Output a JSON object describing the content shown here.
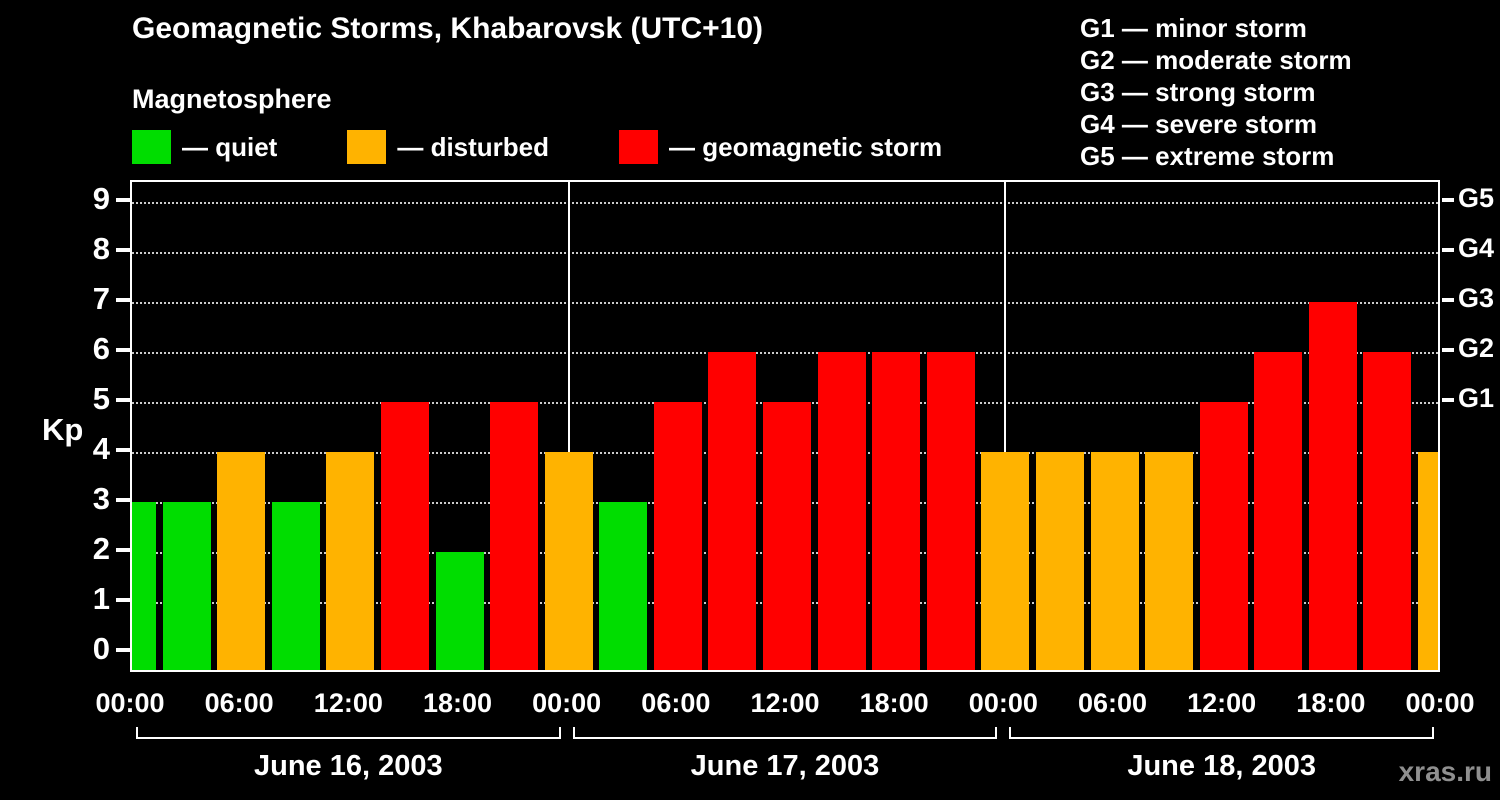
{
  "header": {
    "title": "Geomagnetic Storms, Khabarovsk (UTC+10)",
    "subtitle": "Magnetosphere"
  },
  "legend": {
    "items": [
      {
        "key": "quiet",
        "label": "— quiet",
        "color": "#00dd00"
      },
      {
        "key": "disturbed",
        "label": "— disturbed",
        "color": "#ffb300"
      },
      {
        "key": "storm",
        "label": "— geomagnetic storm",
        "color": "#ff0000"
      }
    ]
  },
  "storm_scale_legend": {
    "items": [
      "G1 — minor storm",
      "G2 — moderate storm",
      "G3 — strong storm",
      "G4 — severe storm",
      "G5 — extreme storm"
    ]
  },
  "watermark": "xras.ru",
  "chart_data": {
    "type": "bar",
    "title": "Geomagnetic Storms, Khabarovsk (UTC+10)",
    "ylabel": "Kp",
    "ylim": [
      0,
      9
    ],
    "yticks": [
      0,
      1,
      2,
      3,
      4,
      5,
      6,
      7,
      8,
      9
    ],
    "right_axis": [
      {
        "label": "G1",
        "kp": 5
      },
      {
        "label": "G2",
        "kp": 6
      },
      {
        "label": "G3",
        "kp": 7
      },
      {
        "label": "G4",
        "kp": 8
      },
      {
        "label": "G5",
        "kp": 9
      }
    ],
    "interval_hours": 3,
    "x_time_labels": [
      "00:00",
      "06:00",
      "12:00",
      "18:00",
      "00:00",
      "06:00",
      "12:00",
      "18:00",
      "00:00",
      "06:00",
      "12:00",
      "18:00",
      "00:00"
    ],
    "days": [
      {
        "label": "June 16, 2003",
        "values": [
          3,
          3,
          4,
          3,
          4,
          5,
          2,
          5
        ]
      },
      {
        "label": "June 17, 2003",
        "values": [
          4,
          3,
          5,
          6,
          5,
          6,
          6,
          6
        ]
      },
      {
        "label": "June 18, 2003",
        "values": [
          4,
          4,
          4,
          4,
          5,
          6,
          7,
          6
        ]
      }
    ],
    "trailing_value": 4,
    "color_rules": {
      "quiet_max": 3,
      "disturbed": 4,
      "storm_min": 5
    },
    "colors": {
      "quiet": "#00dd00",
      "disturbed": "#ffb300",
      "storm": "#ff0000"
    },
    "grid": "dotted-horizontal",
    "legend_position": "top-left"
  }
}
